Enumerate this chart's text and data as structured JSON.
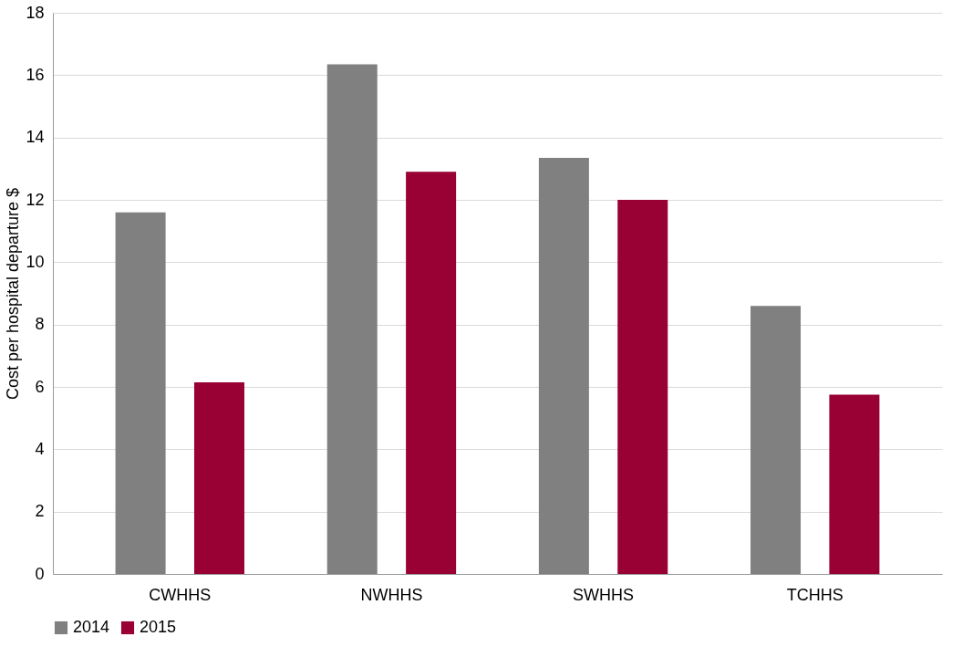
{
  "chart_data": {
    "type": "bar",
    "ylabel": "Cost per hospital departure $",
    "categories": [
      "CWHHS",
      "NWHHS",
      "SWHHS",
      "TCHHS"
    ],
    "series": [
      {
        "name": "2014",
        "color": "#808080",
        "values": [
          11.6,
          16.35,
          13.35,
          8.6
        ]
      },
      {
        "name": "2015",
        "color": "#990033",
        "values": [
          6.15,
          12.9,
          12.0,
          5.75
        ]
      }
    ],
    "ylim": [
      0,
      18
    ],
    "yticks": [
      0,
      2,
      4,
      6,
      8,
      10,
      12,
      14,
      16,
      18
    ],
    "grid": "y",
    "legend": "bottom"
  }
}
